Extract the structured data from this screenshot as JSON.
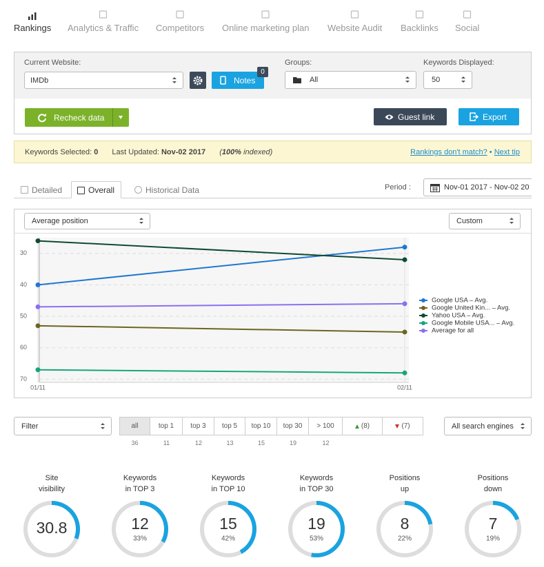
{
  "nav": {
    "tabs": [
      "Rankings",
      "Analytics & Traffic",
      "Competitors",
      "Online marketing plan",
      "Website Audit",
      "Backlinks",
      "Social"
    ],
    "active": 0
  },
  "toolbar": {
    "website_label": "Current Website:",
    "website": "IMDb",
    "notes": "Notes",
    "notes_count": 0,
    "groups_label": "Groups:",
    "group": "All",
    "keywords_label": "Keywords Displayed:",
    "keywords_displayed": 50,
    "recheck": "Recheck data",
    "guest_link": "Guest link",
    "export": "Export"
  },
  "notice": {
    "selected_label": "Keywords Selected:",
    "selected": 0,
    "updated_label": "Last Updated:",
    "updated": "Nov-02 2017",
    "indexed_open": "(",
    "indexed_value": "100%",
    "indexed_rest": " indexed)",
    "mismatch_link": "Rankings don't match?",
    "separator": "•",
    "tip_link": "Next tip"
  },
  "view": {
    "tabs": [
      "Detailed",
      "Overall",
      "Historical Data"
    ],
    "active": 1,
    "period_label": "Period :",
    "period": "Nov-01 2017 - Nov-02 20"
  },
  "chart_controls": {
    "metric": "Average position",
    "range": "Custom"
  },
  "chart_data": {
    "type": "line",
    "categories": [
      "01/11",
      "02/11"
    ],
    "series": [
      {
        "name": "Google USA – Avg.",
        "color": "#1f77d0",
        "values": [
          40,
          28
        ]
      },
      {
        "name": "Google United Kin... – Avg.",
        "color": "#6e6420",
        "values": [
          53,
          55
        ]
      },
      {
        "name": "Yahoo USA – Avg.",
        "color": "#0f4a30",
        "values": [
          26,
          32
        ]
      },
      {
        "name": "Google Mobile USA... – Avg.",
        "color": "#16a67a",
        "values": [
          67,
          68
        ]
      },
      {
        "name": "Average for all",
        "color": "#8b6ff0",
        "values": [
          47,
          46
        ]
      }
    ],
    "ylim": [
      25,
      71
    ],
    "y_reversed": true,
    "yticks": [
      30,
      40,
      50,
      60,
      70
    ],
    "grid": true,
    "legend": "right"
  },
  "filters": {
    "filter": "Filter",
    "buttons": [
      {
        "label": "all",
        "count": 36
      },
      {
        "label": "top 1",
        "count": 11
      },
      {
        "label": "top 3",
        "count": 12
      },
      {
        "label": "top 5",
        "count": 13
      },
      {
        "label": "top 10",
        "count": 15
      },
      {
        "label": "top 30",
        "count": 19
      },
      {
        "label": "> 100",
        "count": 12
      },
      {
        "label": "(8)",
        "arrow": "up"
      },
      {
        "label": "(7)",
        "arrow": "down"
      }
    ],
    "active": 0,
    "engines": "All search engines"
  },
  "stats": [
    {
      "title": [
        "Site",
        "visibility"
      ],
      "value": 30.8
    },
    {
      "title": [
        "Keywords",
        "in TOP 3"
      ],
      "value": 12,
      "percent": 33,
      "percent_label": "33%"
    },
    {
      "title": [
        "Keywords",
        "in TOP 10"
      ],
      "value": 15,
      "percent": 42,
      "percent_label": "42%"
    },
    {
      "title": [
        "Keywords",
        "in TOP 30"
      ],
      "value": 19,
      "percent": 53,
      "percent_label": "53%"
    },
    {
      "title": [
        "Positions",
        "up"
      ],
      "value": 8,
      "percent": 22,
      "percent_label": "22%"
    },
    {
      "title": [
        "Positions",
        "down"
      ],
      "value": 7,
      "percent": 19,
      "percent_label": "19%"
    }
  ]
}
